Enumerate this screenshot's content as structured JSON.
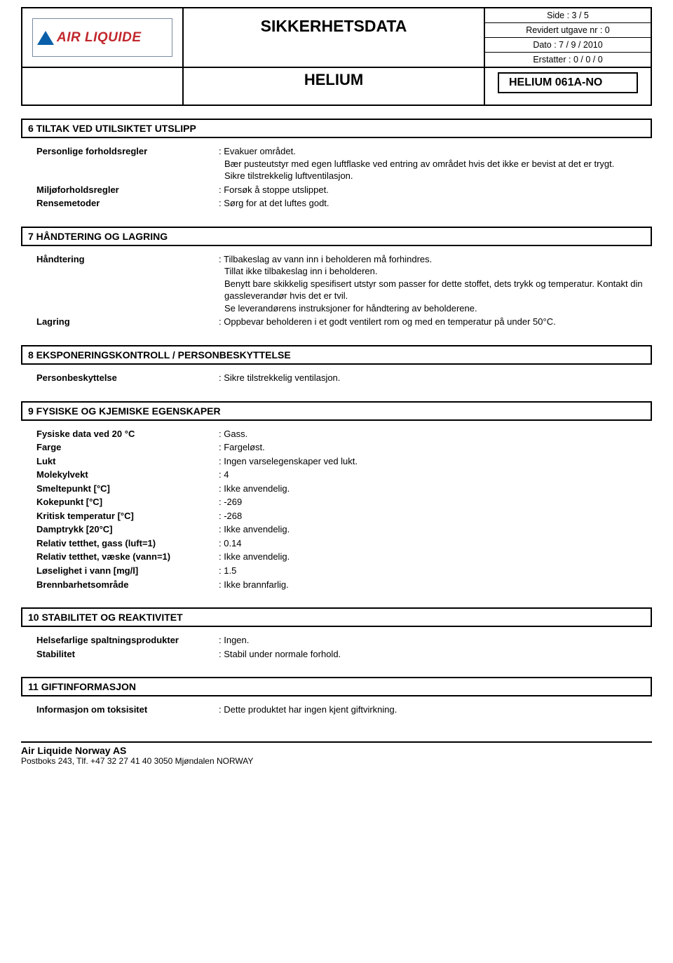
{
  "header": {
    "logo_text": "AIR LIQUIDE",
    "doc_title": "SIKKERHETSDATA",
    "meta": {
      "page": "Side : 3 / 5",
      "revision": "Revidert utgave nr : 0",
      "date": "Dato : 7 / 9 / 2010",
      "replaces": "Erstatter : 0 / 0 / 0"
    },
    "product_name": "HELIUM",
    "product_code": "HELIUM 061A-NO"
  },
  "sections": {
    "s6": {
      "title": "6  TILTAK VED UTILSIKTET UTSLIPP",
      "rows": [
        {
          "label": "Personlige forholdsregler",
          "value": "Evakuer området.\nBær pusteutstyr med egen luftflaske ved entring av området hvis det ikke er bevist at det er trygt.\nSikre tilstrekkelig luftventilasjon."
        },
        {
          "label": "Miljøforholdsregler",
          "value": "Forsøk å stoppe utslippet."
        },
        {
          "label": "Rensemetoder",
          "value": "Sørg for at det luftes godt."
        }
      ]
    },
    "s7": {
      "title": "7  HÅNDTERING OG LAGRING",
      "rows": [
        {
          "label": "Håndtering",
          "value": "Tilbakeslag av vann inn i beholderen må forhindres.\nTillat ikke tilbakeslag inn i beholderen.\nBenytt bare skikkelig spesifisert utstyr som passer for dette stoffet, dets trykk og temperatur. Kontakt din gassleverandør hvis det er tvil.\nSe leverandørens instruksjoner for håndtering av beholderene."
        },
        {
          "label": "Lagring",
          "value": "Oppbevar beholderen i et godt ventilert rom og med en temperatur på under 50°C."
        }
      ]
    },
    "s8": {
      "title": "8  EKSPONERINGSKONTROLL / PERSONBESKYTTELSE",
      "rows": [
        {
          "label": "Personbeskyttelse",
          "value": "Sikre tilstrekkelig ventilasjon."
        }
      ]
    },
    "s9": {
      "title": "9  FYSISKE OG KJEMISKE EGENSKAPER",
      "rows": [
        {
          "label": "Fysiske data ved 20 °C",
          "value": "Gass."
        },
        {
          "label": "Farge",
          "value": "Fargeløst."
        },
        {
          "label": "Lukt",
          "value": "Ingen varselegenskaper ved lukt."
        },
        {
          "label": "Molekylvekt",
          "value": "4"
        },
        {
          "label": "Smeltepunkt  [°C]",
          "value": "Ikke anvendelig."
        },
        {
          "label": "Kokepunkt [°C]",
          "value": "-269"
        },
        {
          "label": "Kritisk temperatur [°C]",
          "value": "-268"
        },
        {
          "label": "Damptrykk [20°C]",
          "value": "Ikke anvendelig."
        },
        {
          "label": "Relativ tetthet, gass  (luft=1)",
          "value": "0.14"
        },
        {
          "label": "Relativ tetthet, væske  (vann=1)",
          "value": "Ikke anvendelig."
        },
        {
          "label": "Løselighet i vann [mg/l]",
          "value": "1.5"
        },
        {
          "label": "Brennbarhetsområde",
          "value": "Ikke brannfarlig."
        }
      ]
    },
    "s10": {
      "title": "10  STABILITET OG REAKTIVITET",
      "rows": [
        {
          "label": "Helsefarlige spaltningsprodukter",
          "value": "Ingen."
        },
        {
          "label": "Stabilitet",
          "value": "Stabil under normale forhold."
        }
      ]
    },
    "s11": {
      "title": "11  GIFTINFORMASJON",
      "rows": [
        {
          "label": "Informasjon om toksisitet",
          "value": "Dette produktet har ingen kjent giftvirkning."
        }
      ]
    }
  },
  "footer": {
    "company": "Air Liquide Norway AS",
    "address": "Postboks 243, Tlf.  +47 32 27 41 40  3050  Mjøndalen  NORWAY"
  },
  "colors": {
    "border": "#000000",
    "logo_red": "#c1272d",
    "logo_blue": "#0a5fa8",
    "logo_border": "#7a8aa0",
    "background": "#ffffff"
  }
}
